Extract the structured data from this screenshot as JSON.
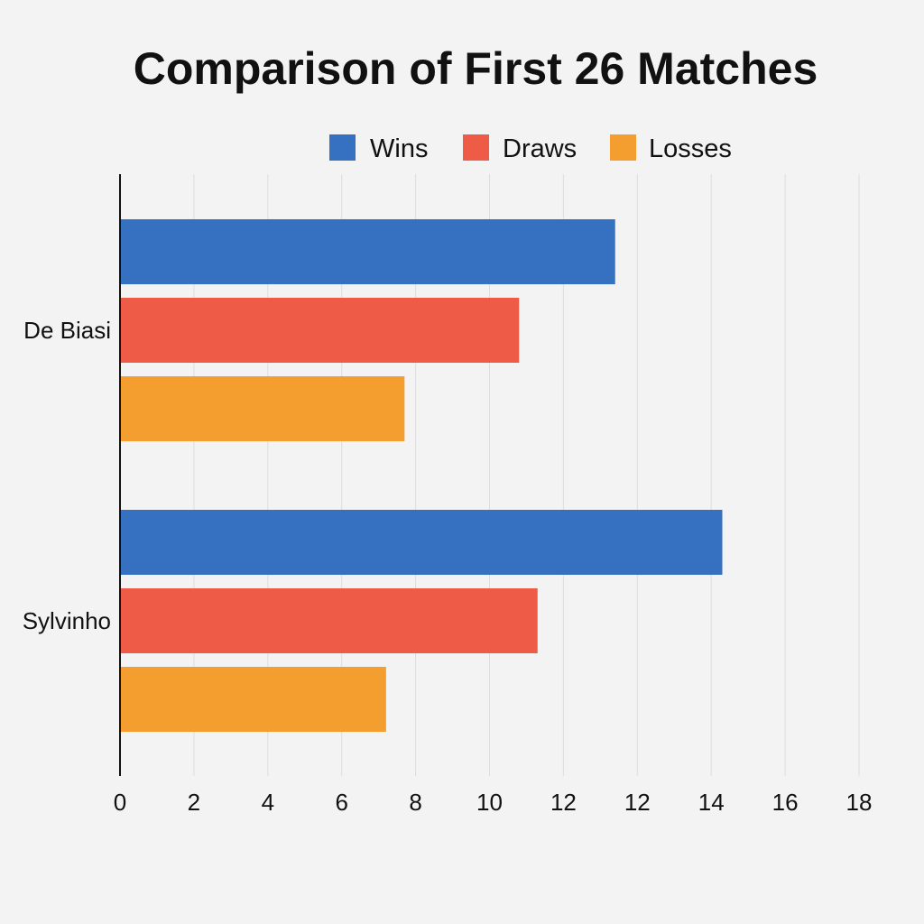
{
  "chart_data": {
    "type": "bar",
    "orientation": "horizontal",
    "title": "Comparison of First 26 Matches",
    "xlabel": "",
    "ylabel": "",
    "categories": [
      "De Biasi",
      "Sylvinho"
    ],
    "series": [
      {
        "name": "Wins",
        "color": "#3571c0",
        "values": [
          13.4,
          16.3
        ]
      },
      {
        "name": "Draws",
        "color": "#ee5b47",
        "values": [
          10.8,
          11.3
        ]
      },
      {
        "name": "Losses",
        "color": "#f39e2e",
        "values": [
          7.7,
          7.2
        ]
      }
    ],
    "x_ticks": [
      "0",
      "2",
      "4",
      "6",
      "8",
      "10",
      "12",
      "12",
      "14",
      "16",
      "18"
    ],
    "xlim": [
      0,
      20
    ],
    "grid": "vertical",
    "legend_position": "top-right"
  }
}
